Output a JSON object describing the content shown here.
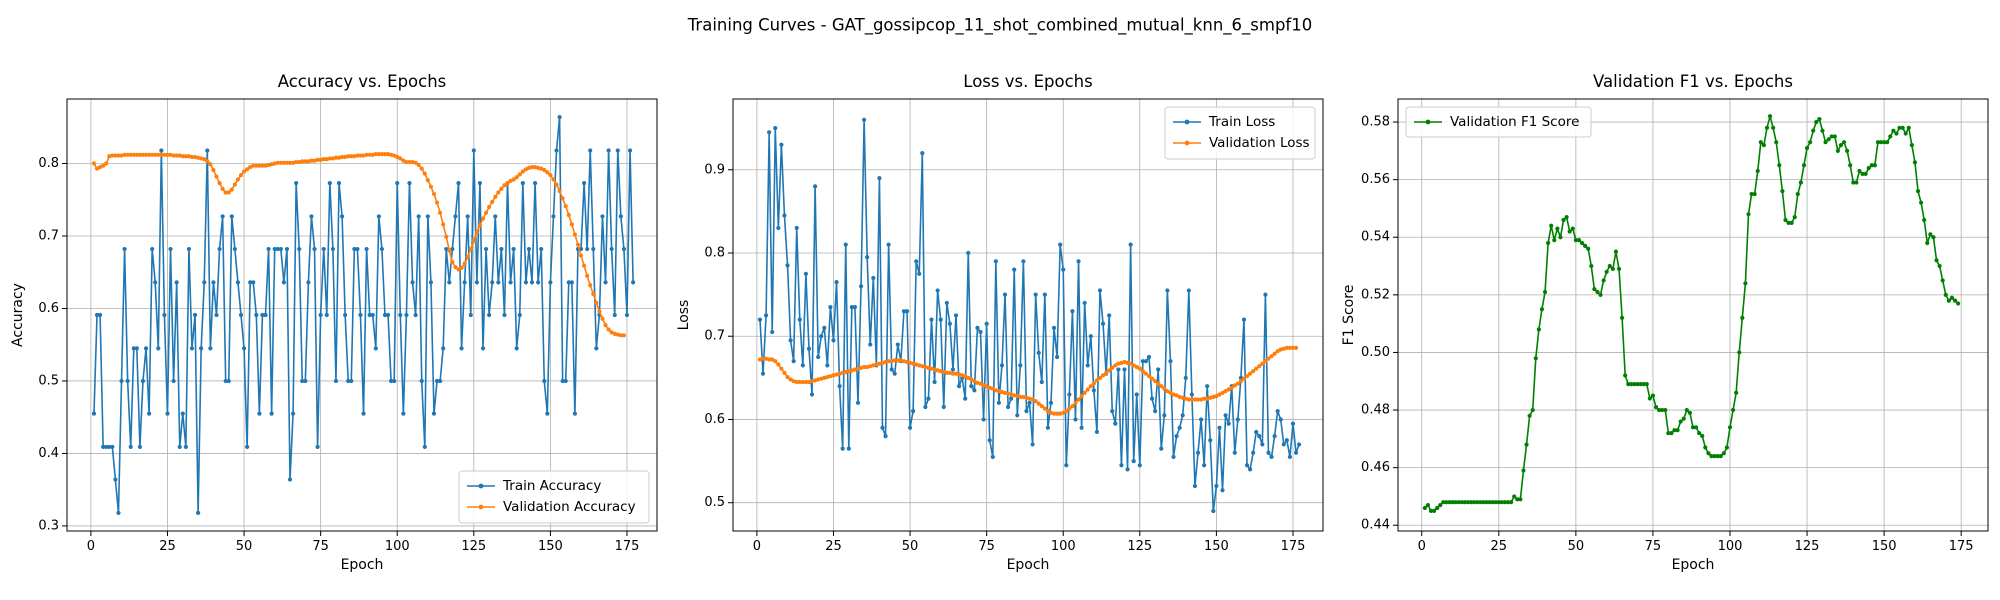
{
  "suptitle": "Training Curves - GAT_gossipcop_11_shot_combined_mutual_knn_6_smpf10",
  "chart_data": [
    {
      "type": "line",
      "title": "Accuracy vs. Epochs",
      "xlabel": "Epoch",
      "ylabel": "Accuracy",
      "xlim": [
        -7.8,
        184.8
      ],
      "ylim": [
        0.293,
        0.889
      ],
      "xticks": [
        0,
        25,
        50,
        75,
        100,
        125,
        150,
        175
      ],
      "yticks": [
        0.3,
        0.4,
        0.5,
        0.6,
        0.7,
        0.8
      ],
      "ytick_labels": [
        "0.3",
        "0.4",
        "0.5",
        "0.6",
        "0.7",
        "0.8"
      ],
      "grid": true,
      "legend": "lower-right",
      "series": [
        {
          "name": "Train Accuracy",
          "color": "#1f77b4",
          "x_start": 1,
          "values": [
            0.455,
            0.591,
            0.591,
            0.409,
            0.409,
            0.409,
            0.409,
            0.364,
            0.318,
            0.5,
            0.682,
            0.5,
            0.409,
            0.545,
            0.545,
            0.409,
            0.5,
            0.545,
            0.455,
            0.682,
            0.636,
            0.545,
            0.818,
            0.591,
            0.455,
            0.682,
            0.5,
            0.636,
            0.409,
            0.455,
            0.409,
            0.682,
            0.545,
            0.591,
            0.318,
            0.545,
            0.636,
            0.818,
            0.545,
            0.636,
            0.591,
            0.682,
            0.727,
            0.5,
            0.5,
            0.727,
            0.682,
            0.636,
            0.591,
            0.545,
            0.409,
            0.636,
            0.636,
            0.591,
            0.455,
            0.591,
            0.591,
            0.682,
            0.455,
            0.682,
            0.682,
            0.682,
            0.636,
            0.682,
            0.364,
            0.455,
            0.773,
            0.682,
            0.5,
            0.5,
            0.636,
            0.727,
            0.682,
            0.409,
            0.591,
            0.682,
            0.591,
            0.773,
            0.682,
            0.5,
            0.773,
            0.727,
            0.591,
            0.5,
            0.5,
            0.682,
            0.682,
            0.591,
            0.455,
            0.682,
            0.591,
            0.591,
            0.545,
            0.727,
            0.682,
            0.591,
            0.591,
            0.5,
            0.5,
            0.773,
            0.591,
            0.455,
            0.591,
            0.773,
            0.636,
            0.591,
            0.727,
            0.5,
            0.409,
            0.727,
            0.636,
            0.455,
            0.5,
            0.5,
            0.545,
            0.682,
            0.636,
            0.682,
            0.727,
            0.773,
            0.545,
            0.636,
            0.727,
            0.591,
            0.818,
            0.636,
            0.773,
            0.545,
            0.682,
            0.591,
            0.636,
            0.727,
            0.636,
            0.682,
            0.591,
            0.773,
            0.636,
            0.682,
            0.545,
            0.591,
            0.773,
            0.636,
            0.682,
            0.636,
            0.773,
            0.636,
            0.682,
            0.5,
            0.455,
            0.636,
            0.727,
            0.818,
            0.864,
            0.5,
            0.5,
            0.636,
            0.636,
            0.455,
            0.682,
            0.682,
            0.773,
            0.682,
            0.818,
            0.682,
            0.545,
            0.591,
            0.727,
            0.636,
            0.818,
            0.682,
            0.591,
            0.818,
            0.727,
            0.682,
            0.591,
            0.818,
            0.636
          ]
        },
        {
          "name": "Validation Accuracy",
          "color": "#ff7f0e",
          "x_start": 1,
          "values": [
            0.8,
            0.793,
            0.795,
            0.797,
            0.8,
            0.81,
            0.811,
            0.811,
            0.811,
            0.811,
            0.812,
            0.812,
            0.812,
            0.812,
            0.812,
            0.812,
            0.812,
            0.812,
            0.812,
            0.812,
            0.812,
            0.812,
            0.812,
            0.812,
            0.812,
            0.812,
            0.811,
            0.811,
            0.811,
            0.81,
            0.81,
            0.81,
            0.809,
            0.809,
            0.808,
            0.807,
            0.806,
            0.803,
            0.799,
            0.791,
            0.782,
            0.773,
            0.765,
            0.76,
            0.76,
            0.764,
            0.771,
            0.778,
            0.784,
            0.789,
            0.792,
            0.795,
            0.797,
            0.797,
            0.797,
            0.797,
            0.797,
            0.798,
            0.799,
            0.8,
            0.801,
            0.801,
            0.801,
            0.801,
            0.801,
            0.801,
            0.802,
            0.802,
            0.803,
            0.803,
            0.803,
            0.804,
            0.804,
            0.805,
            0.805,
            0.806,
            0.806,
            0.807,
            0.807,
            0.808,
            0.808,
            0.809,
            0.809,
            0.81,
            0.81,
            0.81,
            0.811,
            0.811,
            0.811,
            0.812,
            0.812,
            0.812,
            0.813,
            0.813,
            0.813,
            0.813,
            0.813,
            0.812,
            0.811,
            0.809,
            0.807,
            0.804,
            0.802,
            0.802,
            0.802,
            0.801,
            0.798,
            0.793,
            0.786,
            0.777,
            0.768,
            0.758,
            0.746,
            0.732,
            0.716,
            0.699,
            0.68,
            0.664,
            0.657,
            0.654,
            0.656,
            0.662,
            0.671,
            0.682,
            0.694,
            0.705,
            0.715,
            0.724,
            0.732,
            0.74,
            0.747,
            0.754,
            0.76,
            0.765,
            0.77,
            0.773,
            0.776,
            0.778,
            0.781,
            0.785,
            0.789,
            0.792,
            0.794,
            0.795,
            0.795,
            0.794,
            0.793,
            0.791,
            0.788,
            0.784,
            0.778,
            0.771,
            0.762,
            0.752,
            0.741,
            0.729,
            0.716,
            0.702,
            0.688,
            0.673,
            0.659,
            0.645,
            0.632,
            0.62,
            0.608,
            0.596,
            0.586,
            0.577,
            0.571,
            0.567,
            0.565,
            0.564,
            0.563,
            0.563
          ]
        }
      ]
    },
    {
      "type": "line",
      "title": "Loss vs. Epochs",
      "xlabel": "Epoch",
      "ylabel": "Loss",
      "xlim": [
        -7.8,
        184.8
      ],
      "ylim": [
        0.466,
        0.985
      ],
      "xticks": [
        0,
        25,
        50,
        75,
        100,
        125,
        150,
        175
      ],
      "yticks": [
        0.5,
        0.6,
        0.7,
        0.8,
        0.9
      ],
      "ytick_labels": [
        "0.5",
        "0.6",
        "0.7",
        "0.8",
        "0.9"
      ],
      "grid": true,
      "legend": "upper-right",
      "series": [
        {
          "name": "Train Loss",
          "color": "#1f77b4",
          "x_start": 1,
          "values": [
            0.72,
            0.655,
            0.725,
            0.945,
            0.705,
            0.95,
            0.83,
            0.93,
            0.845,
            0.785,
            0.695,
            0.67,
            0.83,
            0.72,
            0.665,
            0.775,
            0.685,
            0.63,
            0.88,
            0.675,
            0.7,
            0.71,
            0.665,
            0.735,
            0.695,
            0.765,
            0.64,
            0.565,
            0.81,
            0.565,
            0.735,
            0.735,
            0.62,
            0.76,
            0.96,
            0.795,
            0.69,
            0.77,
            0.665,
            0.89,
            0.59,
            0.58,
            0.81,
            0.66,
            0.655,
            0.69,
            0.67,
            0.73,
            0.73,
            0.59,
            0.61,
            0.79,
            0.775,
            0.92,
            0.615,
            0.625,
            0.72,
            0.645,
            0.755,
            0.72,
            0.615,
            0.74,
            0.715,
            0.66,
            0.725,
            0.64,
            0.65,
            0.625,
            0.8,
            0.64,
            0.635,
            0.71,
            0.705,
            0.6,
            0.715,
            0.575,
            0.555,
            0.79,
            0.62,
            0.665,
            0.75,
            0.615,
            0.625,
            0.78,
            0.605,
            0.665,
            0.79,
            0.61,
            0.62,
            0.57,
            0.75,
            0.68,
            0.645,
            0.75,
            0.59,
            0.62,
            0.71,
            0.675,
            0.81,
            0.78,
            0.545,
            0.63,
            0.73,
            0.6,
            0.79,
            0.59,
            0.74,
            0.665,
            0.7,
            0.635,
            0.585,
            0.755,
            0.715,
            0.655,
            0.725,
            0.61,
            0.595,
            0.66,
            0.545,
            0.66,
            0.54,
            0.81,
            0.55,
            0.63,
            0.545,
            0.67,
            0.67,
            0.675,
            0.625,
            0.61,
            0.66,
            0.565,
            0.605,
            0.755,
            0.67,
            0.555,
            0.58,
            0.59,
            0.605,
            0.65,
            0.755,
            0.63,
            0.52,
            0.56,
            0.6,
            0.545,
            0.64,
            0.575,
            0.49,
            0.52,
            0.59,
            0.515,
            0.605,
            0.595,
            0.64,
            0.56,
            0.6,
            0.65,
            0.72,
            0.545,
            0.54,
            0.56,
            0.585,
            0.58,
            0.57,
            0.75,
            0.56,
            0.555,
            0.58,
            0.61,
            0.6,
            0.57,
            0.575,
            0.555,
            0.595,
            0.56,
            0.57
          ]
        },
        {
          "name": "Validation Loss",
          "color": "#ff7f0e",
          "x_start": 1,
          "values": [
            0.672,
            0.673,
            0.673,
            0.672,
            0.672,
            0.67,
            0.666,
            0.661,
            0.656,
            0.651,
            0.648,
            0.646,
            0.645,
            0.645,
            0.645,
            0.645,
            0.645,
            0.646,
            0.647,
            0.648,
            0.649,
            0.65,
            0.651,
            0.652,
            0.653,
            0.654,
            0.655,
            0.656,
            0.657,
            0.658,
            0.659,
            0.66,
            0.661,
            0.662,
            0.663,
            0.663,
            0.664,
            0.665,
            0.666,
            0.667,
            0.668,
            0.669,
            0.67,
            0.67,
            0.671,
            0.671,
            0.671,
            0.67,
            0.669,
            0.668,
            0.667,
            0.666,
            0.665,
            0.664,
            0.663,
            0.662,
            0.661,
            0.66,
            0.659,
            0.658,
            0.657,
            0.656,
            0.656,
            0.655,
            0.655,
            0.654,
            0.653,
            0.652,
            0.65,
            0.648,
            0.646,
            0.644,
            0.643,
            0.641,
            0.64,
            0.638,
            0.637,
            0.635,
            0.634,
            0.633,
            0.632,
            0.631,
            0.63,
            0.629,
            0.628,
            0.627,
            0.627,
            0.626,
            0.625,
            0.624,
            0.622,
            0.619,
            0.616,
            0.613,
            0.61,
            0.608,
            0.607,
            0.607,
            0.607,
            0.608,
            0.61,
            0.613,
            0.616,
            0.62,
            0.624,
            0.628,
            0.632,
            0.636,
            0.64,
            0.643,
            0.647,
            0.65,
            0.653,
            0.656,
            0.659,
            0.662,
            0.665,
            0.667,
            0.668,
            0.669,
            0.668,
            0.667,
            0.665,
            0.663,
            0.661,
            0.658,
            0.655,
            0.652,
            0.649,
            0.646,
            0.643,
            0.64,
            0.637,
            0.634,
            0.632,
            0.63,
            0.629,
            0.627,
            0.626,
            0.625,
            0.624,
            0.624,
            0.624,
            0.624,
            0.624,
            0.625,
            0.625,
            0.626,
            0.627,
            0.628,
            0.63,
            0.632,
            0.634,
            0.636,
            0.638,
            0.641,
            0.643,
            0.646,
            0.649,
            0.652,
            0.655,
            0.658,
            0.661,
            0.664,
            0.667,
            0.67,
            0.673,
            0.676,
            0.679,
            0.682,
            0.684,
            0.685,
            0.686,
            0.686,
            0.686,
            0.686
          ]
        }
      ]
    },
    {
      "type": "line",
      "title": "Validation F1 vs. Epochs",
      "xlabel": "Epoch",
      "ylabel": "F1 Score",
      "xlim": [
        -7.7,
        183.7
      ],
      "ylim": [
        0.438,
        0.588
      ],
      "xticks": [
        0,
        25,
        50,
        75,
        100,
        125,
        150,
        175
      ],
      "yticks": [
        0.44,
        0.46,
        0.48,
        0.5,
        0.52,
        0.54,
        0.56,
        0.58
      ],
      "ytick_labels": [
        "0.44",
        "0.46",
        "0.48",
        "0.50",
        "0.52",
        "0.54",
        "0.56",
        "0.58"
      ],
      "grid": true,
      "legend": "upper-left",
      "series": [
        {
          "name": "Validation F1 Score",
          "color": "#008000",
          "x_start": 1,
          "values": [
            0.446,
            0.447,
            0.445,
            0.445,
            0.446,
            0.447,
            0.448,
            0.448,
            0.448,
            0.448,
            0.448,
            0.448,
            0.448,
            0.448,
            0.448,
            0.448,
            0.448,
            0.448,
            0.448,
            0.448,
            0.448,
            0.448,
            0.448,
            0.448,
            0.448,
            0.448,
            0.448,
            0.448,
            0.448,
            0.45,
            0.449,
            0.449,
            0.459,
            0.468,
            0.478,
            0.48,
            0.498,
            0.508,
            0.515,
            0.521,
            0.538,
            0.544,
            0.539,
            0.543,
            0.54,
            0.546,
            0.547,
            0.542,
            0.543,
            0.539,
            0.539,
            0.538,
            0.537,
            0.536,
            0.53,
            0.522,
            0.521,
            0.52,
            0.525,
            0.528,
            0.53,
            0.529,
            0.535,
            0.529,
            0.512,
            0.492,
            0.489,
            0.489,
            0.489,
            0.489,
            0.489,
            0.489,
            0.489,
            0.484,
            0.485,
            0.481,
            0.48,
            0.48,
            0.48,
            0.472,
            0.472,
            0.473,
            0.473,
            0.476,
            0.477,
            0.48,
            0.479,
            0.474,
            0.474,
            0.472,
            0.471,
            0.467,
            0.465,
            0.464,
            0.464,
            0.464,
            0.464,
            0.465,
            0.467,
            0.474,
            0.48,
            0.486,
            0.5,
            0.512,
            0.524,
            0.548,
            0.555,
            0.555,
            0.563,
            0.573,
            0.572,
            0.578,
            0.582,
            0.578,
            0.573,
            0.565,
            0.556,
            0.546,
            0.545,
            0.545,
            0.547,
            0.555,
            0.559,
            0.565,
            0.571,
            0.573,
            0.577,
            0.58,
            0.581,
            0.577,
            0.573,
            0.574,
            0.575,
            0.575,
            0.57,
            0.572,
            0.573,
            0.57,
            0.565,
            0.559,
            0.559,
            0.563,
            0.562,
            0.562,
            0.564,
            0.565,
            0.565,
            0.573,
            0.573,
            0.573,
            0.573,
            0.575,
            0.577,
            0.576,
            0.578,
            0.578,
            0.576,
            0.578,
            0.572,
            0.566,
            0.556,
            0.552,
            0.546,
            0.538,
            0.541,
            0.54,
            0.532,
            0.53,
            0.525,
            0.52,
            0.518,
            0.519,
            0.518,
            0.517
          ]
        }
      ]
    }
  ]
}
